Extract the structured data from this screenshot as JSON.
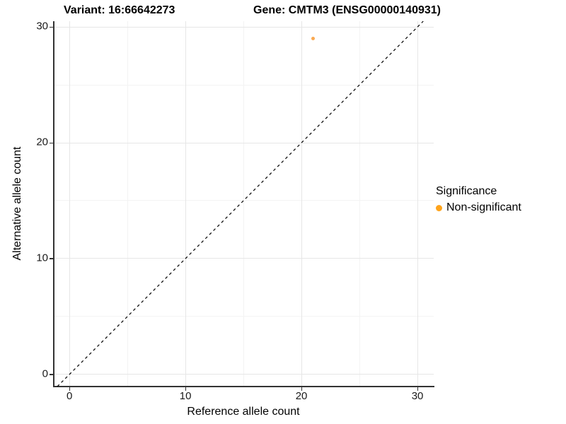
{
  "header": {
    "variant_title": "Variant: 16:66642273",
    "gene_title": "Gene: CMTM3 (ENSG00000140931)"
  },
  "axes": {
    "x_title": "Reference allele count",
    "y_title": "Alternative allele count"
  },
  "legend": {
    "title": "Significance",
    "position": "right",
    "entries": [
      {
        "label": "Non-significant",
        "color": "#FFA41B"
      }
    ]
  },
  "colors": {
    "point_orange": "#F9A03F",
    "axis_line": "#333333",
    "grid_major": "#e6e6e6",
    "grid_minor": "#f3f3f3",
    "abline": "#000000"
  },
  "chart_data": {
    "type": "scatter",
    "title": "Variant: 16:66642273    Gene: CMTM3 (ENSG00000140931)",
    "xlabel": "Reference allele count",
    "ylabel": "Alternative allele count",
    "xlim": [
      -1.35,
      31.4
    ],
    "ylim": [
      -1.05,
      30.5
    ],
    "x_ticks": [
      0,
      10,
      20,
      30
    ],
    "y_ticks": [
      0,
      10,
      20,
      30
    ],
    "minor_ticks": [
      5,
      15,
      25
    ],
    "grid": true,
    "series": [
      {
        "name": "Non-significant",
        "color": "#F9A03F",
        "points": [
          {
            "x": 21,
            "y": 29
          }
        ]
      }
    ],
    "abline": {
      "equation": "y = x",
      "style": "dashed",
      "color": "#000000"
    },
    "legend_position": "right"
  }
}
